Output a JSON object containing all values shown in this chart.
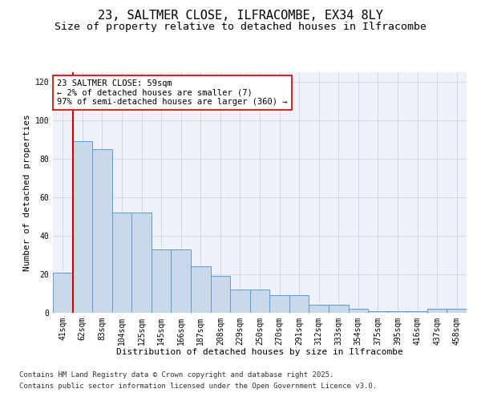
{
  "title": "23, SALTMER CLOSE, ILFRACOMBE, EX34 8LY",
  "subtitle": "Size of property relative to detached houses in Ilfracombe",
  "xlabel": "Distribution of detached houses by size in Ilfracombe",
  "ylabel": "Number of detached properties",
  "categories": [
    "41sqm",
    "62sqm",
    "83sqm",
    "104sqm",
    "125sqm",
    "145sqm",
    "166sqm",
    "187sqm",
    "208sqm",
    "229sqm",
    "250sqm",
    "270sqm",
    "291sqm",
    "312sqm",
    "333sqm",
    "354sqm",
    "375sqm",
    "395sqm",
    "416sqm",
    "437sqm",
    "458sqm"
  ],
  "values": [
    21,
    89,
    85,
    52,
    52,
    33,
    33,
    24,
    19,
    12,
    12,
    9,
    9,
    4,
    4,
    2,
    1,
    1,
    1,
    2,
    2
  ],
  "bar_color": "#c8d8e8",
  "bar_edge_color": "#5b9bd5",
  "vline_color": "#cc0000",
  "annotation_text": "23 SALTMER CLOSE: 59sqm\n← 2% of detached houses are smaller (7)\n97% of semi-detached houses are larger (360) →",
  "annotation_box_color": "#ffffff",
  "annotation_box_edge": "#cc0000",
  "ylim": [
    0,
    125
  ],
  "yticks": [
    0,
    20,
    40,
    60,
    80,
    100,
    120
  ],
  "grid_color": "#d0d8e8",
  "background_color": "#eef2f8",
  "footer1": "Contains HM Land Registry data © Crown copyright and database right 2025.",
  "footer2": "Contains public sector information licensed under the Open Government Licence v3.0.",
  "title_fontsize": 11,
  "subtitle_fontsize": 9.5,
  "axis_label_fontsize": 8,
  "tick_fontsize": 7,
  "annotation_fontsize": 7.5,
  "footer_fontsize": 6.5
}
